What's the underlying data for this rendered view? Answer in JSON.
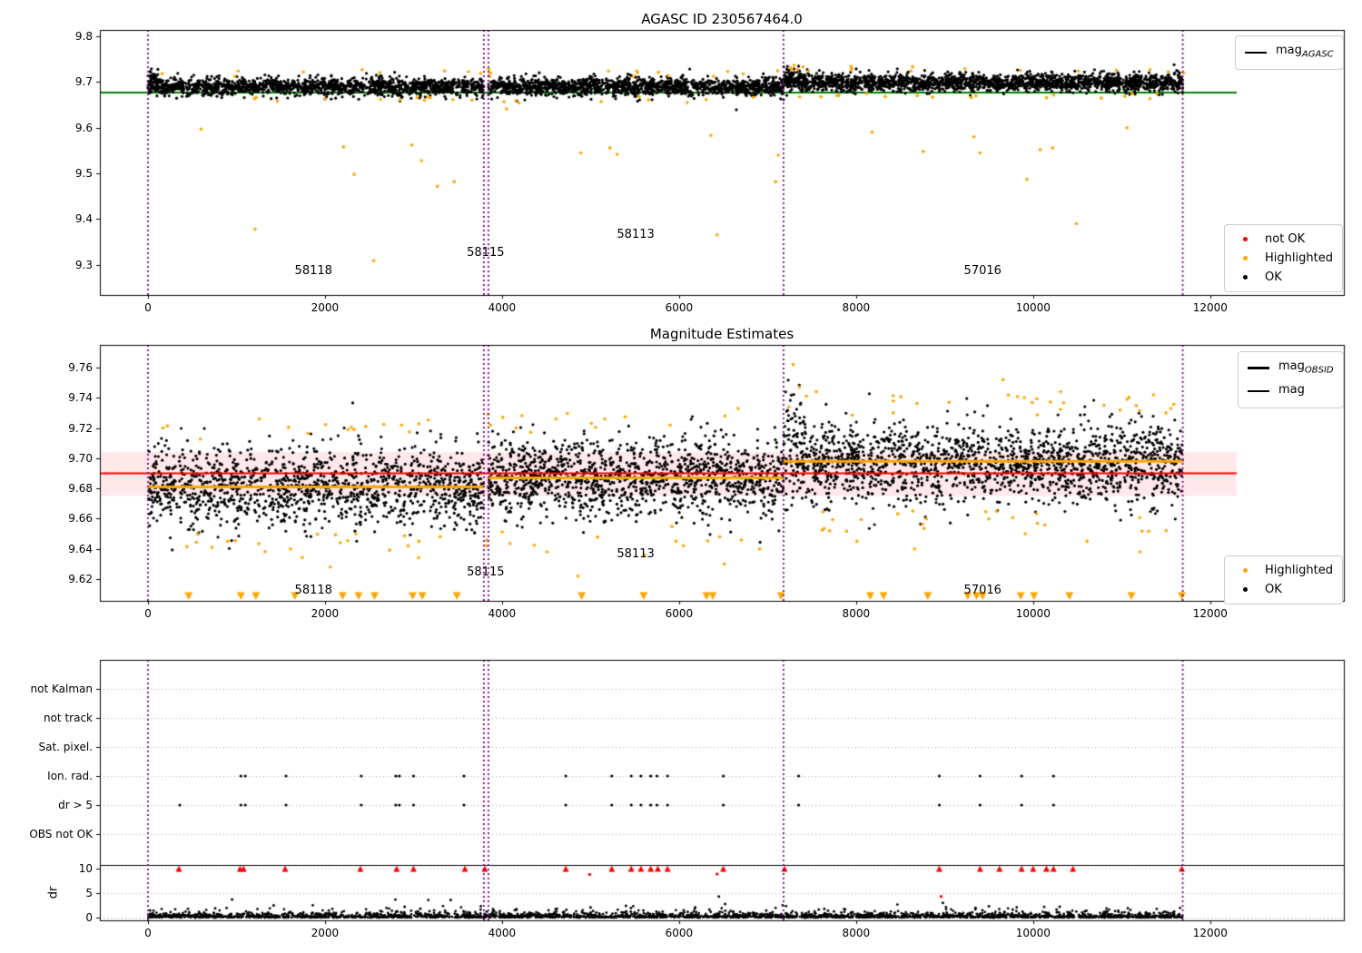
{
  "figure": {
    "background": "#ffffff"
  },
  "colors": {
    "ok": "#000000",
    "highlighted": "#FFA500",
    "not_ok": "#FF0000",
    "mag_agasc_line": "#008000",
    "mag_obsid_line": "#FFA500",
    "mag_line": "#FF0000",
    "error_band": "rgba(255,30,50,0.10)",
    "obsid_boundary": "#800080",
    "grid": "#aaaaaa"
  },
  "plots": {
    "top": {
      "title": "AGASC ID 230567464.0",
      "legend_line": {
        "base": "mag",
        "sub": "AGASC"
      },
      "legend_points": [
        {
          "label": "not OK",
          "color": "#FF0000"
        },
        {
          "label": "Highlighted",
          "color": "#FFA500"
        },
        {
          "label": "OK",
          "color": "#000000"
        }
      ]
    },
    "middle": {
      "title": "Magnitude Estimates",
      "legend_lines": [
        {
          "base": "mag",
          "sub": "OBSID",
          "color": "#FFA500"
        },
        {
          "base": "mag",
          "sub": "",
          "color": "#FF0000"
        }
      ],
      "legend_points": [
        {
          "label": "Highlighted",
          "color": "#FFA500"
        },
        {
          "label": "OK",
          "color": "#000000"
        }
      ]
    },
    "bottom": {
      "ylabel": "dr",
      "flag_rows": [
        "not Kalman",
        "not track",
        "Sat. pixel.",
        "Ion. rad.",
        "dr > 5",
        "OBS not OK"
      ],
      "dr_ticks": [
        10,
        5,
        0
      ]
    }
  },
  "chart_data": [
    {
      "id": "agasc-magnitude-timeline",
      "type": "scatter",
      "title": "AGASC ID 230567464.0",
      "xlim": [
        -543,
        13510
      ],
      "ylim": [
        9.234,
        9.814
      ],
      "xticks": [
        0,
        2000,
        4000,
        6000,
        8000,
        10000,
        12000
      ],
      "yticks": [
        9.3,
        9.4,
        9.5,
        9.6,
        9.7,
        9.8
      ],
      "mag_agasc": 9.677,
      "line_extent": [
        -543,
        12300
      ],
      "obsid_boundaries": [
        0,
        3795,
        3846,
        7180,
        11690
      ],
      "segments": [
        {
          "obsid": "58118",
          "x0": 0,
          "x1": 3795,
          "mean": 9.69,
          "sigma": 0.0095,
          "n": 1500,
          "start_cluster": {
            "n": 40,
            "dx": 130,
            "mean": 9.703,
            "sigma": 0.012
          }
        },
        {
          "obsid": "58113",
          "x0": 3846,
          "x1": 7180,
          "mean": 9.69,
          "sigma": 0.0095,
          "n": 1400
        },
        {
          "obsid": "57016",
          "x0": 7180,
          "x1": 11690,
          "mean": 9.699,
          "sigma": 0.0095,
          "n": 1900,
          "start_cluster": {
            "n": 50,
            "dx": 200,
            "mean": 9.714,
            "sigma": 0.012
          }
        }
      ],
      "generated_highlights": {
        "n": 60,
        "offset_min": 0.022,
        "offset_max": 0.036
      },
      "highlighted_points": [
        [
          600,
          9.597
        ],
        [
          1210,
          9.378
        ],
        [
          2210,
          9.558
        ],
        [
          2330,
          9.498
        ],
        [
          2550,
          9.309
        ],
        [
          2980,
          9.562
        ],
        [
          3090,
          9.528
        ],
        [
          3270,
          9.472
        ],
        [
          3460,
          9.482
        ],
        [
          4050,
          9.641
        ],
        [
          4890,
          9.545
        ],
        [
          5220,
          9.556
        ],
        [
          5300,
          9.542
        ],
        [
          6360,
          9.583
        ],
        [
          6430,
          9.366
        ],
        [
          7090,
          9.482
        ],
        [
          7120,
          9.54
        ],
        [
          8180,
          9.59
        ],
        [
          8760,
          9.548
        ],
        [
          9330,
          9.58
        ],
        [
          9400,
          9.545
        ],
        [
          9930,
          9.487
        ],
        [
          10080,
          9.552
        ],
        [
          10220,
          9.556
        ],
        [
          10490,
          9.39
        ],
        [
          11060,
          9.6
        ],
        [
          7260,
          9.731
        ],
        [
          7300,
          9.737
        ],
        [
          7340,
          9.727
        ],
        [
          7400,
          9.733
        ],
        [
          7460,
          9.724
        ],
        [
          3850,
          9.728
        ],
        [
          3870,
          9.72
        ],
        [
          160,
          9.718
        ],
        [
          1020,
          9.724
        ],
        [
          2420,
          9.727
        ],
        [
          5520,
          9.724
        ],
        [
          6550,
          9.723
        ],
        [
          7950,
          9.729
        ],
        [
          8620,
          9.724
        ],
        [
          9230,
          9.729
        ],
        [
          10510,
          9.724
        ],
        [
          11320,
          9.727
        ],
        [
          11700,
          9.72
        ]
      ],
      "annotations": [
        {
          "text": "58118",
          "x": 1870,
          "y": 9.285
        },
        {
          "text": "58115",
          "x": 3815,
          "y": 9.325
        },
        {
          "text": "58113",
          "x": 5510,
          "y": 9.365
        },
        {
          "text": "57016",
          "x": 9430,
          "y": 9.285
        }
      ]
    },
    {
      "id": "magnitude-estimates",
      "type": "scatter",
      "title": "Magnitude Estimates",
      "xlim": [
        -543,
        13510
      ],
      "ylim": [
        9.6056,
        9.775
      ],
      "xticks": [
        0,
        2000,
        4000,
        6000,
        8000,
        10000,
        12000
      ],
      "yticks": [
        9.62,
        9.64,
        9.66,
        9.68,
        9.7,
        9.72,
        9.74,
        9.76
      ],
      "mag": 9.69,
      "mag_err_band": [
        9.675,
        9.704
      ],
      "line_extent": [
        -543,
        12300
      ],
      "obsid_boundaries": [
        0,
        3795,
        3846,
        7180,
        11690
      ],
      "mag_obsid_segments": [
        {
          "obsid": "58118",
          "x0": 0,
          "x1": 3795,
          "mag": 9.681
        },
        {
          "obsid": "58113",
          "x0": 3846,
          "x1": 7180,
          "mag": 9.687
        },
        {
          "obsid": "57016",
          "x0": 7180,
          "x1": 11690,
          "mag": 9.698
        }
      ],
      "segments": [
        {
          "obsid": "58118",
          "x0": 0,
          "x1": 3795,
          "mean": 9.68,
          "sigma": 0.013,
          "n": 1350
        },
        {
          "obsid": "58113",
          "x0": 3846,
          "x1": 7180,
          "mean": 9.687,
          "sigma": 0.013,
          "n": 1300
        },
        {
          "obsid": "57016",
          "x0": 7180,
          "x1": 11690,
          "mean": 9.697,
          "sigma": 0.013,
          "n": 1700,
          "start_cluster": {
            "n": 40,
            "dx": 250,
            "mean": 9.722,
            "sigma": 0.014
          }
        }
      ],
      "generated_highlights": {
        "n": 85,
        "offset_min": 0.03,
        "offset_max": 0.046
      },
      "highlighted_points": [
        [
          7290,
          9.762
        ],
        [
          7360,
          9.747
        ],
        [
          7440,
          9.741
        ],
        [
          7240,
          9.734
        ],
        [
          7550,
          9.744
        ],
        [
          9660,
          9.752
        ],
        [
          10310,
          9.744
        ],
        [
          11060,
          9.739
        ],
        [
          11360,
          9.742
        ],
        [
          4010,
          9.727
        ],
        [
          4160,
          9.72
        ],
        [
          4610,
          9.726
        ],
        [
          5010,
          9.723
        ],
        [
          5160,
          9.726
        ],
        [
          2460,
          9.721
        ],
        [
          170,
          9.72
        ],
        [
          1260,
          9.726
        ],
        [
          2260,
          9.719
        ],
        [
          3840,
          9.729
        ],
        [
          3870,
          9.722
        ],
        [
          8420,
          9.73
        ],
        [
          9050,
          9.737
        ],
        [
          9900,
          9.74
        ],
        [
          10800,
          9.735
        ],
        [
          11500,
          9.73
        ],
        [
          6520,
          9.728
        ],
        [
          5900,
          9.722
        ],
        [
          1610,
          9.64
        ],
        [
          2060,
          9.628
        ],
        [
          3060,
          9.645
        ],
        [
          4510,
          9.638
        ],
        [
          5610,
          9.636
        ],
        [
          6460,
          9.648
        ],
        [
          6510,
          9.63
        ],
        [
          8010,
          9.645
        ],
        [
          8660,
          9.64
        ],
        [
          9910,
          9.65
        ],
        [
          10610,
          9.645
        ],
        [
          11210,
          9.638
        ],
        [
          4860,
          9.622
        ],
        [
          6910,
          9.64
        ],
        [
          2350,
          9.65
        ],
        [
          3300,
          9.648
        ],
        [
          560,
          9.65
        ],
        [
          900,
          9.645
        ],
        [
          7700,
          9.652
        ]
      ],
      "clipped_low_x": [
        460,
        1050,
        1220,
        1660,
        2200,
        2380,
        2560,
        2990,
        3100,
        3490,
        4900,
        5600,
        6310,
        6380,
        7150,
        8160,
        8310,
        8810,
        9260,
        9360,
        9430,
        9860,
        10010,
        10410,
        11110,
        11680
      ],
      "annotations": [
        {
          "text": "58118",
          "x": 1870,
          "y": 9.612
        },
        {
          "text": "58115",
          "x": 3815,
          "y": 9.624
        },
        {
          "text": "58113",
          "x": 5510,
          "y": 9.636
        },
        {
          "text": "57016",
          "x": 9430,
          "y": 9.612
        }
      ]
    },
    {
      "id": "quality-flags-and-dr",
      "type": "scatter",
      "xlim": [
        -543,
        13510
      ],
      "xticks": [
        0,
        2000,
        4000,
        6000,
        8000,
        10000,
        12000
      ],
      "flag_rows": [
        "not Kalman",
        "not track",
        "Sat. pixel.",
        "Ion. rad.",
        "dr > 5",
        "OBS not OK"
      ],
      "dr_ticks": [
        10,
        5,
        0
      ],
      "obsid_boundaries": [
        0,
        3795,
        3846,
        7180,
        11690
      ],
      "ion_rad_x": [
        1050,
        1100,
        1560,
        2410,
        2800,
        2840,
        3000,
        3570,
        4720,
        5240,
        5460,
        5570,
        5680,
        5750,
        5870,
        6500,
        7350,
        8940,
        9400,
        9870,
        10230
      ],
      "dr_gt5_x": [
        360,
        1050,
        1100,
        1560,
        2410,
        2800,
        2840,
        3000,
        3570,
        4720,
        5240,
        5460,
        5570,
        5680,
        5750,
        5870,
        6500,
        7350,
        8940,
        9400,
        9870,
        10230
      ],
      "dr_clipped_10_x": [
        350,
        1040,
        1080,
        1550,
        2400,
        2810,
        3000,
        3580,
        3805,
        4720,
        5240,
        5460,
        5570,
        5680,
        5760,
        5870,
        6500,
        7190,
        8940,
        9400,
        9620,
        9870,
        10000,
        10150,
        10230,
        10450,
        11680
      ],
      "not_ok_points": [
        [
          4990,
          8.8
        ],
        [
          8960,
          4.3
        ],
        [
          6430,
          8.9
        ]
      ],
      "dr_outlier_points": [
        [
          950,
          3.7
        ],
        [
          1420,
          2.5
        ],
        [
          2900,
          2.2
        ],
        [
          3420,
          3.6
        ],
        [
          5000,
          2.1
        ],
        [
          5400,
          2.4
        ],
        [
          6450,
          4.3
        ],
        [
          6520,
          2.8
        ],
        [
          8980,
          3.0
        ],
        [
          9350,
          2.0
        ],
        [
          9500,
          2.3
        ],
        [
          10300,
          2.2
        ],
        [
          760,
          1.9
        ]
      ],
      "dr_cloud": {
        "x0": 0,
        "x1": 11690,
        "n": 2600,
        "exp_scale": 0.4,
        "clip": 4.4
      },
      "separator_line_dr": 10.7
    }
  ]
}
